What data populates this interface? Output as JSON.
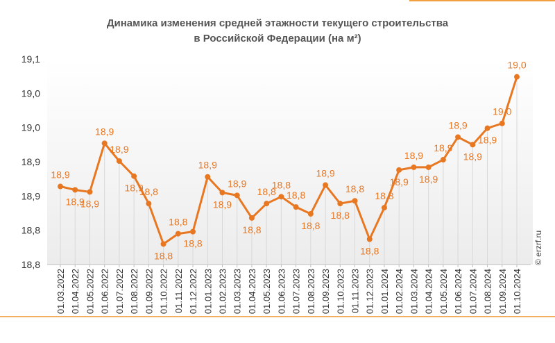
{
  "chart_data": {
    "type": "line",
    "title": "Динамика изменения средней этажности текущего строительства",
    "subtitle": "в Российской Федерации (на м²)",
    "source": "© erzrf.ru",
    "categories": [
      "01.03.2022",
      "01.04.2022",
      "01.05.2022",
      "01.06.2022",
      "01.07.2022",
      "01.08.2022",
      "01.09.2022",
      "01.10.2022",
      "01.11.2022",
      "01.12.2022",
      "01.01.2023",
      "01.02.2023",
      "01.03.2023",
      "01.04.2023",
      "01.05.2023",
      "01.06.2023",
      "01.07.2023",
      "01.08.2023",
      "01.09.2023",
      "01.10.2023",
      "01.11.2023",
      "01.12.2023",
      "01.01.2024",
      "01.02.2024",
      "01.03.2024",
      "01.04.2024",
      "01.05.2024",
      "01.06.2024",
      "01.07.2024",
      "01.08.2024",
      "01.09.2024",
      "01.10.2024"
    ],
    "series": [
      {
        "color": "#e87722",
        "values": [
          18.864,
          18.859,
          18.856,
          18.927,
          18.901,
          18.879,
          18.839,
          18.78,
          18.795,
          18.798,
          18.878,
          18.855,
          18.851,
          18.818,
          18.839,
          18.849,
          18.834,
          18.824,
          18.866,
          18.839,
          18.843,
          18.787,
          18.833,
          18.888,
          18.892,
          18.892,
          18.903,
          18.936,
          18.925,
          18.949,
          18.956,
          19.024
        ],
        "value_labels": [
          "18,9",
          "18,9",
          "18,9",
          "18,9",
          "18,9",
          "18,9",
          "18,8",
          "18,8",
          "18,8",
          "18,8",
          "18,9",
          "18,9",
          "18,9",
          "18,8",
          "18,8",
          "18,8",
          "18,8",
          "18,8",
          "18,9",
          "18,8",
          "18,8",
          "18,8",
          "18,8",
          "18,9",
          "18,9",
          "18,9",
          "18,9",
          "18,9",
          "18,9",
          "18,9",
          "19,0",
          "19,0"
        ]
      }
    ],
    "ylim": [
      18.75,
      19.05
    ],
    "yticks": [
      {
        "value": 18.75,
        "label": "18,8"
      },
      {
        "value": 18.8,
        "label": "18,8"
      },
      {
        "value": 18.85,
        "label": "18,9"
      },
      {
        "value": 18.9,
        "label": "18,9"
      },
      {
        "value": 18.95,
        "label": "19,0"
      },
      {
        "value": 19.0,
        "label": "19,0"
      },
      {
        "value": 19.05,
        "label": "19,1"
      }
    ],
    "grid": false
  }
}
